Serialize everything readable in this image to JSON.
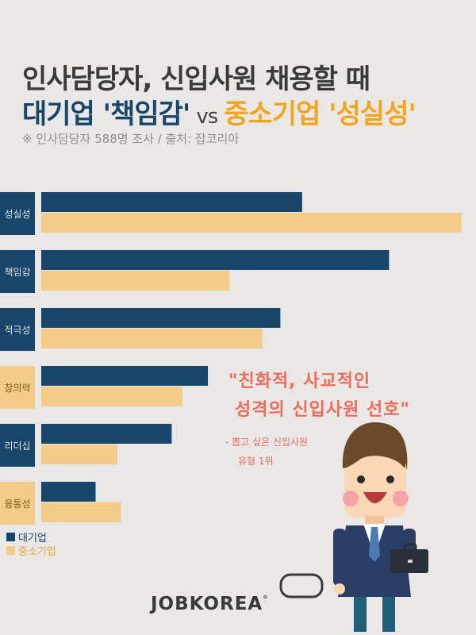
{
  "header": {
    "title_line1": "인사담당자, 신입사원 채용할 때",
    "title_large": "대기업 '책임감'",
    "title_vs": "vs",
    "title_small": "중소기업 '성실성'",
    "subnote": "※ 인사담당자 588명 조사  / 출처: 잡코리아"
  },
  "quote": {
    "line1": "\"친화적, 사교적인",
    "line2": "성격의 신입사원 선호\"",
    "note1": "- 뽑고 싶은 신입사원",
    "note2": "유형 1위"
  },
  "logo_text": "JOBKOREA",
  "colors": {
    "large": "#17466a",
    "small": "#f3cd87",
    "title_orange": "#f4a51c",
    "quote": "#ef6b5a"
  },
  "chart_data": {
    "type": "bar",
    "orientation": "horizontal",
    "categories": [
      "성실성",
      "책임감",
      "적극성",
      "창의력",
      "리더십",
      "융통성"
    ],
    "series": [
      {
        "name": "대기업",
        "color": "#17466a",
        "values": [
          36,
          48,
          33,
          23,
          18,
          7.5
        ]
      },
      {
        "name": "중소기업",
        "color": "#f3cd87",
        "values": [
          58,
          26,
          30.5,
          19.5,
          10.5,
          11
        ]
      }
    ],
    "xlim": [
      0,
      60
    ],
    "legend": "bottom-left"
  }
}
